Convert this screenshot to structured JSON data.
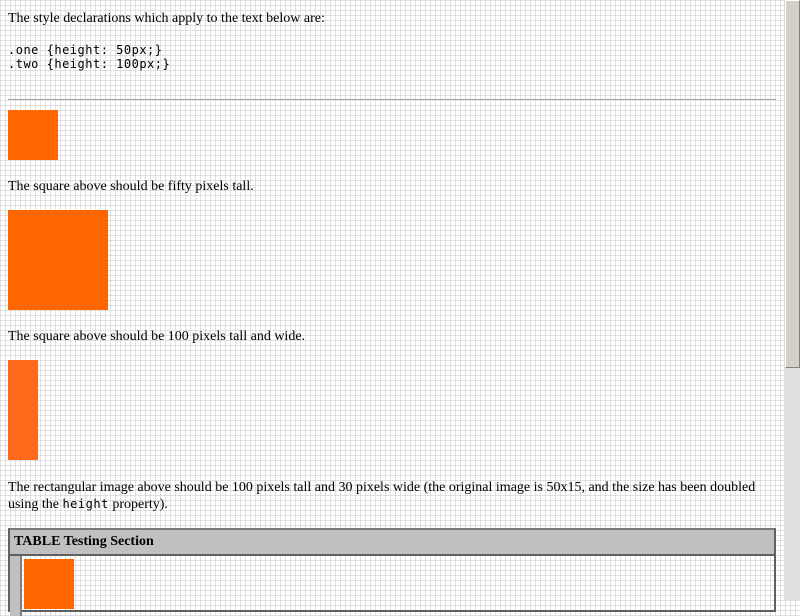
{
  "intro": "The style declarations which apply to the text below are:",
  "code": [
    ".one {height: 50px;}",
    ".two {height: 100px;}"
  ],
  "captions": {
    "first": "The square above should be fifty pixels tall.",
    "second": "The square above should be 100 pixels tall and wide.",
    "third_pre": "The rectangular image above should be 100 pixels tall and 30 pixels wide (the original image is 50x15, and the size has been doubled using the ",
    "third_code": "height",
    "third_post": " property)."
  },
  "table": {
    "header": "TABLE Testing Section"
  },
  "colors": {
    "accent": "#ff6600",
    "table_header_bg": "#c0c0c0"
  },
  "icons": {
    "scrollbar": "vertical-scrollbar"
  }
}
